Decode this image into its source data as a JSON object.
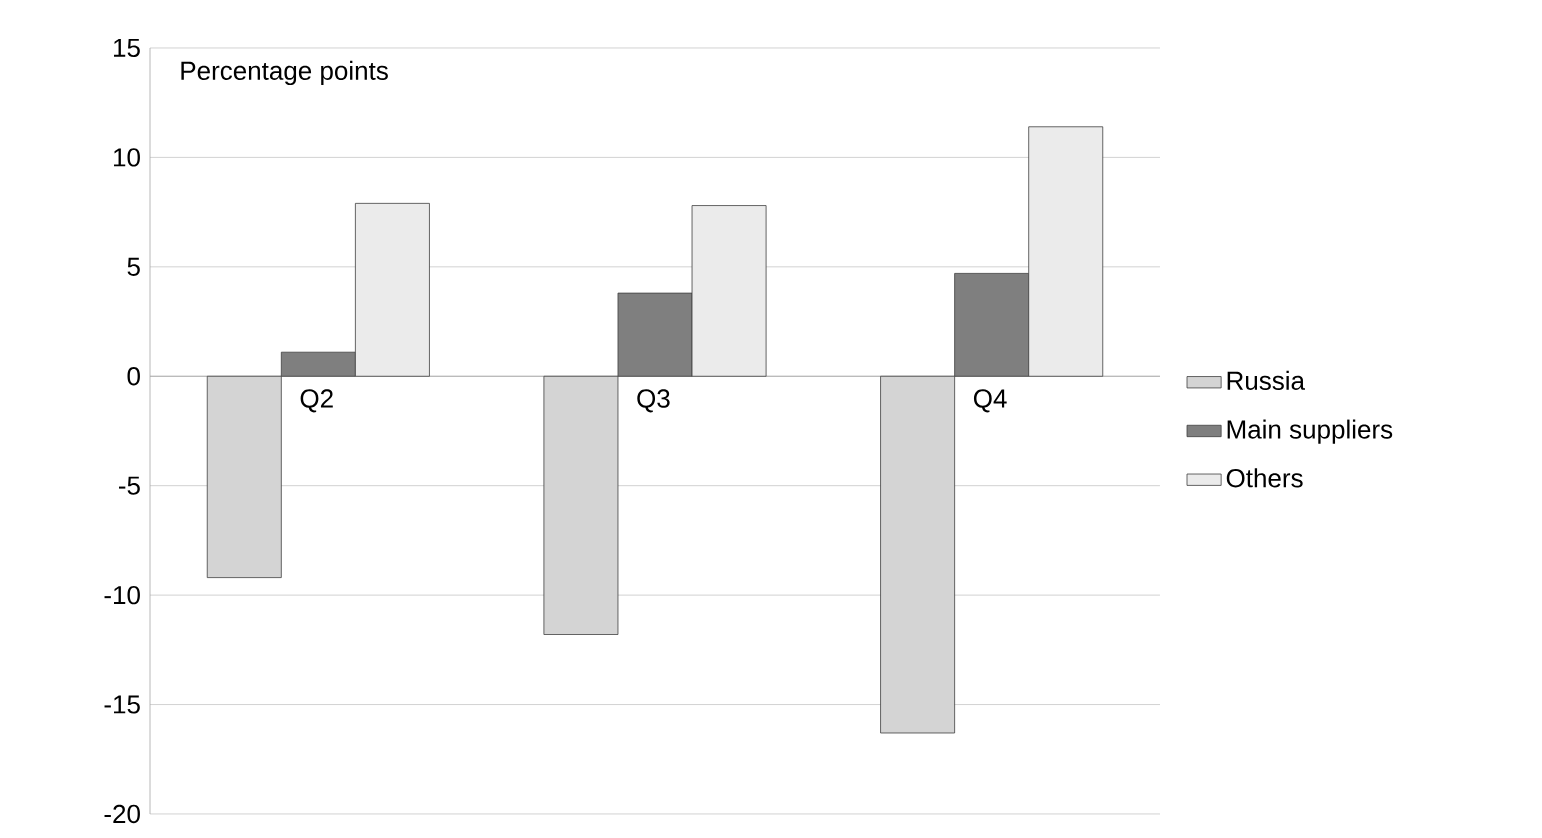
{
  "chart_data": {
    "type": "bar",
    "ylabel": "Percentage points",
    "categories": [
      "Q2",
      "Q3",
      "Q4"
    ],
    "series": [
      {
        "name": "Russia",
        "color": "#d4d4d4",
        "values": [
          -9.2,
          -11.8,
          -16.3
        ]
      },
      {
        "name": "Main  suppliers",
        "color": "#7f7f7f",
        "values": [
          1.1,
          3.8,
          4.7
        ]
      },
      {
        "name": "Others",
        "color": "#ebebeb",
        "values": [
          7.9,
          7.8,
          11.4
        ]
      }
    ],
    "ylim": [
      -20,
      15
    ],
    "yticks": [
      -20,
      -15,
      -10,
      -5,
      0,
      5,
      10,
      15
    ],
    "grid": "y",
    "legend": "right"
  }
}
